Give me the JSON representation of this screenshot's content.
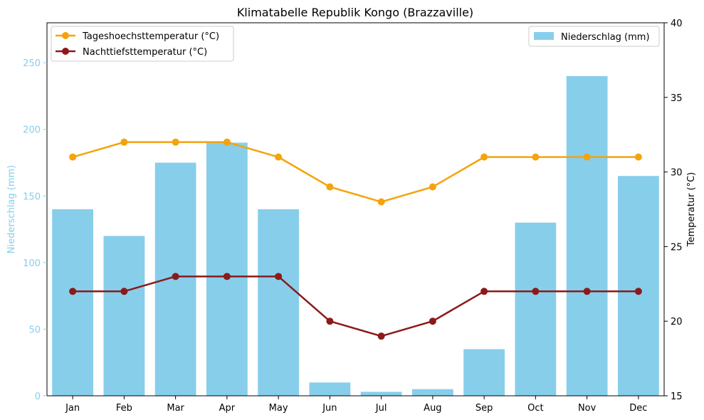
{
  "chart_data": {
    "type": "bar",
    "title": "Klimatabelle Republik Kongo (Brazzaville)",
    "categories": [
      "Jan",
      "Feb",
      "Mar",
      "Apr",
      "May",
      "Jun",
      "Jul",
      "Aug",
      "Sep",
      "Oct",
      "Nov",
      "Dec"
    ],
    "left_axis": {
      "label": "Niederschlag (mm)",
      "range": [
        0,
        280
      ],
      "ticks": [
        0,
        50,
        100,
        150,
        200,
        250
      ],
      "color": "#87ceeb"
    },
    "right_axis": {
      "label": "Temperatur (°C)",
      "range": [
        15,
        40
      ],
      "ticks": [
        15,
        20,
        25,
        30,
        35,
        40
      ]
    },
    "bars": {
      "name": "Niederschlag (mm)",
      "color": "#87ceeb",
      "values": [
        140,
        120,
        175,
        190,
        140,
        10,
        3,
        5,
        35,
        130,
        240,
        165
      ]
    },
    "lines": [
      {
        "name": "Tageshoechsttemperatur (°C)",
        "color": "#f5a30a",
        "values": [
          31,
          32,
          32,
          32,
          31,
          29,
          28,
          29,
          31,
          31,
          31,
          31
        ]
      },
      {
        "name": "Nachttiefsttemperatur (°C)",
        "color": "#8b1a1a",
        "values": [
          22,
          22,
          23,
          23,
          23,
          20,
          19,
          20,
          22,
          22,
          22,
          22
        ]
      }
    ],
    "legend_left_placement": "top-left",
    "legend_right_placement": "top-right",
    "grid": false
  }
}
